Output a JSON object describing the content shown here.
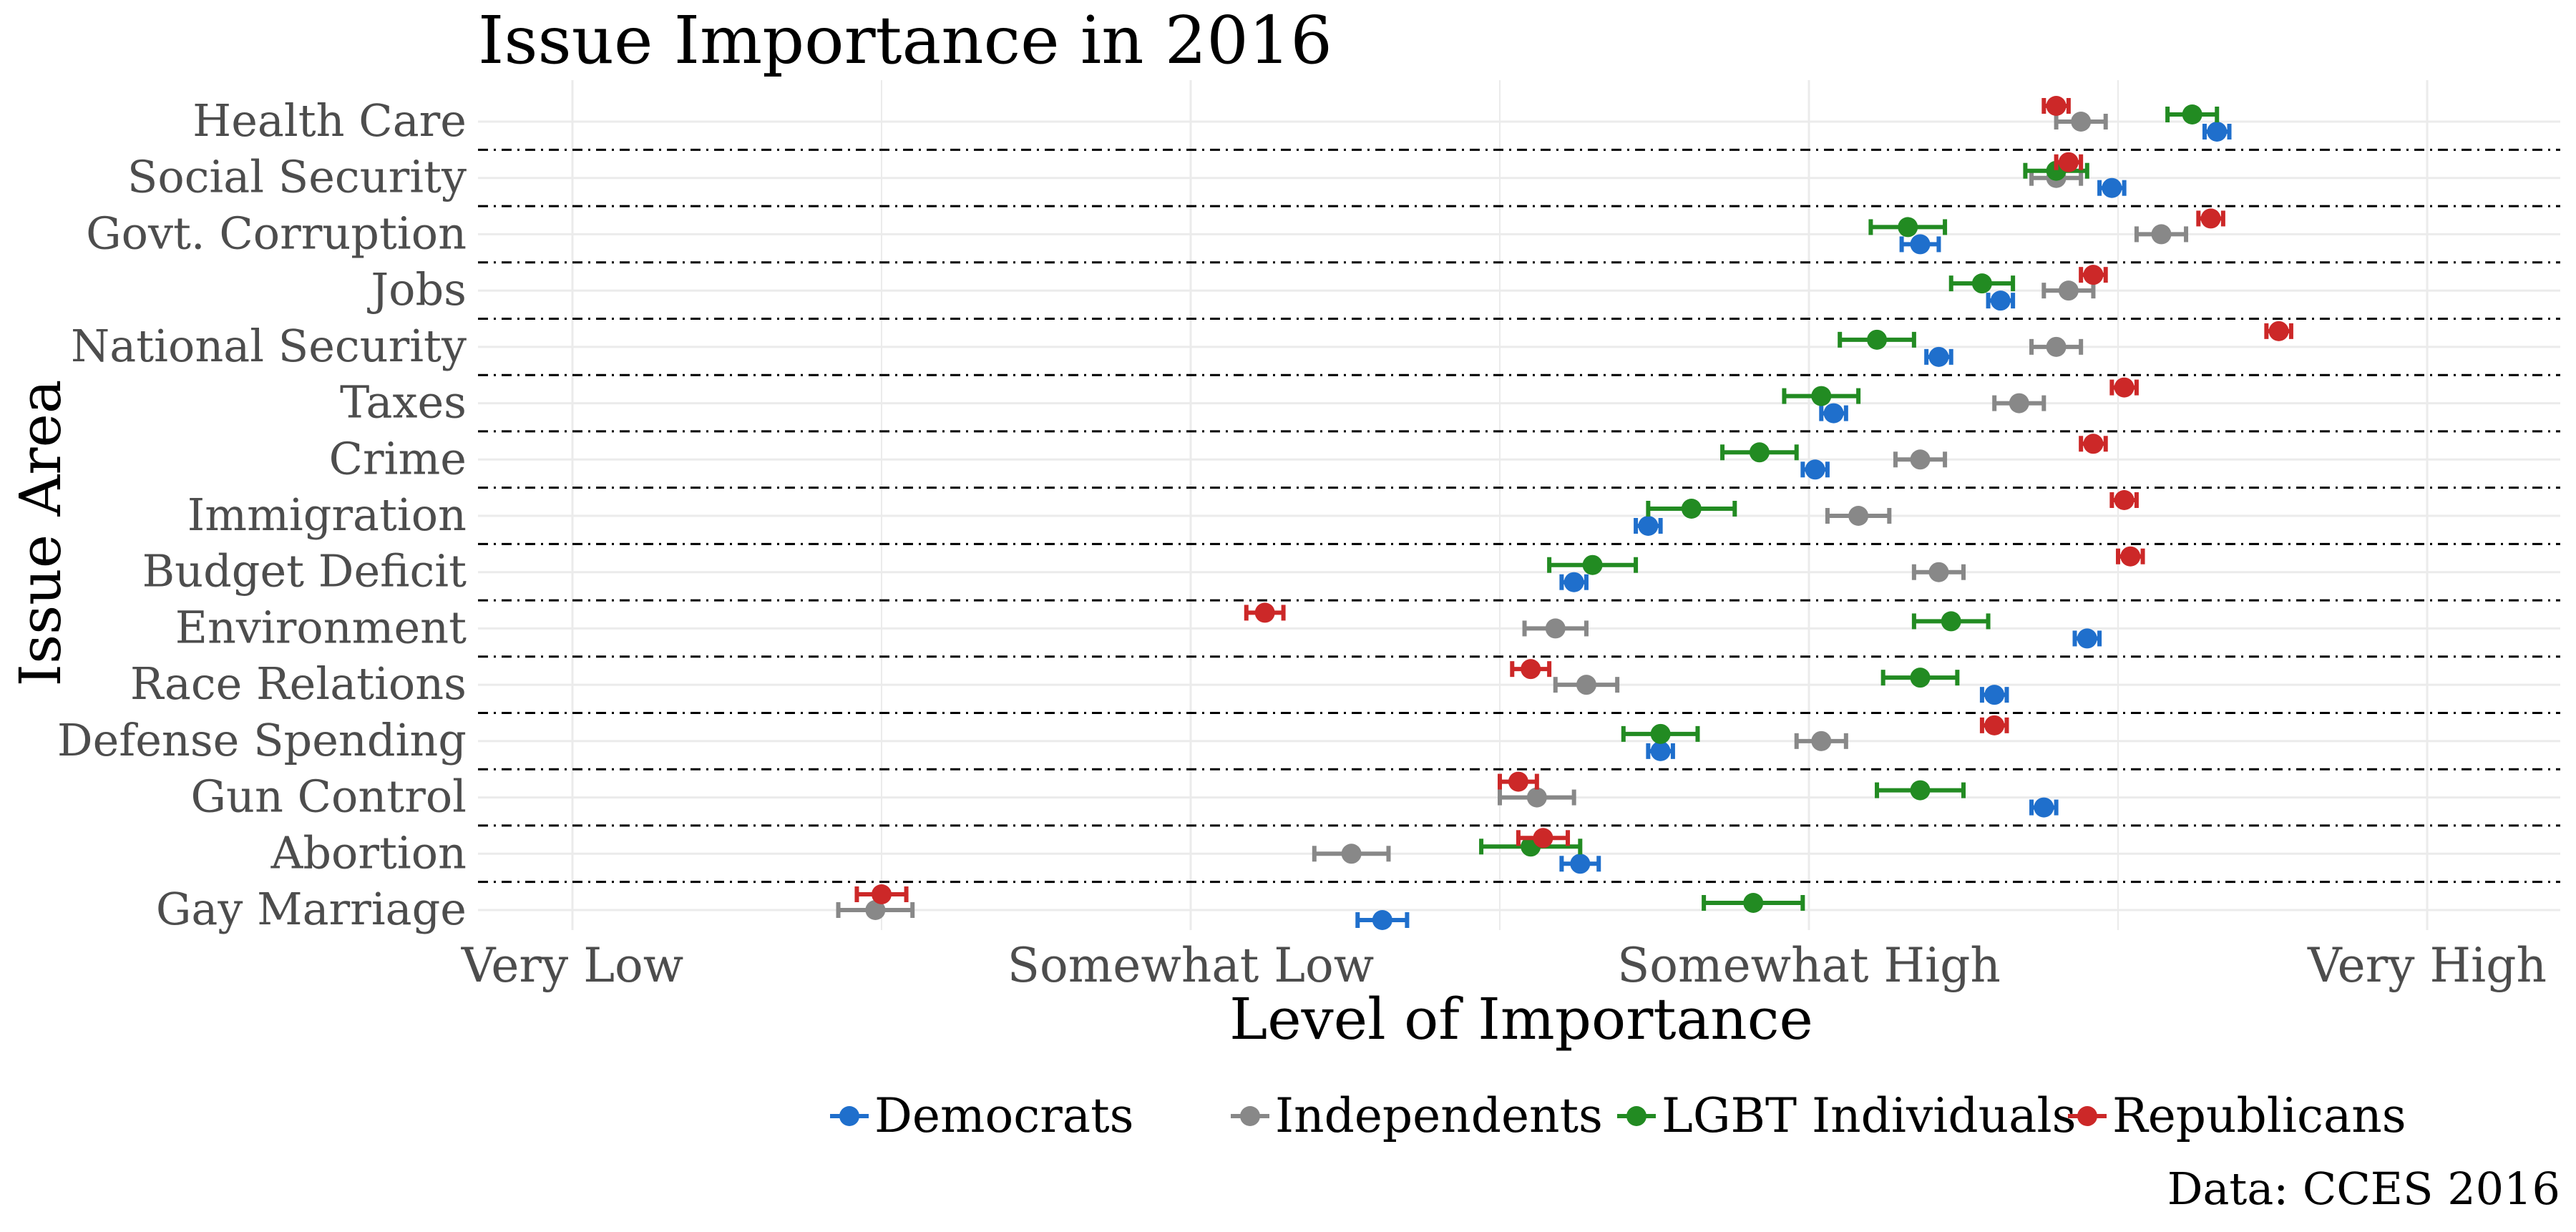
{
  "chart_data": {
    "type": "scatter",
    "title": "Issue Importance in 2016",
    "xlabel": "Level of Importance",
    "ylabel": "Issue Area",
    "caption": "Data: CCES 2016",
    "x_ticks": [
      {
        "value": 1,
        "label": "Very Low"
      },
      {
        "value": 2,
        "label": "Somewhat Low"
      },
      {
        "value": 3,
        "label": "Somewhat High"
      },
      {
        "value": 4,
        "label": "Very High"
      }
    ],
    "xlim": [
      0.84,
      4.2
    ],
    "grid": true,
    "legend_position": "bottom",
    "categories": [
      "Health Care",
      "Social Security",
      "Govt. Corruption",
      "Jobs",
      "National Security",
      "Taxes",
      "Crime",
      "Immigration",
      "Budget Deficit",
      "Environment",
      "Race Relations",
      "Defense Spending",
      "Gun Control",
      "Abortion",
      "Gay Marriage"
    ],
    "series": [
      {
        "name": "Democrats",
        "color": "#1f6fcc",
        "values": [
          3.66,
          3.49,
          3.18,
          3.31,
          3.21,
          3.04,
          3.01,
          2.74,
          2.62,
          3.45,
          3.3,
          2.76,
          3.38,
          2.63,
          2.31
        ],
        "errors": [
          0.02,
          0.02,
          0.03,
          0.02,
          0.02,
          0.02,
          0.02,
          0.02,
          0.02,
          0.02,
          0.02,
          0.02,
          0.02,
          0.03,
          0.04
        ]
      },
      {
        "name": "Independents",
        "color": "#888888",
        "values": [
          3.44,
          3.4,
          3.57,
          3.42,
          3.4,
          3.34,
          3.18,
          3.08,
          3.21,
          2.59,
          2.64,
          3.02,
          2.56,
          2.26,
          1.49
        ],
        "errors": [
          0.04,
          0.04,
          0.04,
          0.04,
          0.04,
          0.04,
          0.04,
          0.05,
          0.04,
          0.05,
          0.05,
          0.04,
          0.06,
          0.06,
          0.06
        ]
      },
      {
        "name": "LGBT Individuals",
        "color": "#228b22",
        "values": [
          3.62,
          3.4,
          3.16,
          3.28,
          3.11,
          3.02,
          2.92,
          2.81,
          2.65,
          3.23,
          3.18,
          2.76,
          3.18,
          2.55,
          2.91
        ],
        "errors": [
          0.04,
          0.05,
          0.06,
          0.05,
          0.06,
          0.06,
          0.06,
          0.07,
          0.07,
          0.06,
          0.06,
          0.06,
          0.07,
          0.08,
          0.08
        ]
      },
      {
        "name": "Republicans",
        "color": "#cc2828",
        "values": [
          3.4,
          3.42,
          3.65,
          3.46,
          3.76,
          3.51,
          3.46,
          3.51,
          3.52,
          2.12,
          2.55,
          3.3,
          2.53,
          2.57,
          1.5
        ],
        "errors": [
          0.02,
          0.02,
          0.02,
          0.02,
          0.02,
          0.02,
          0.02,
          0.02,
          0.02,
          0.03,
          0.03,
          0.02,
          0.03,
          0.04,
          0.04
        ]
      }
    ]
  }
}
